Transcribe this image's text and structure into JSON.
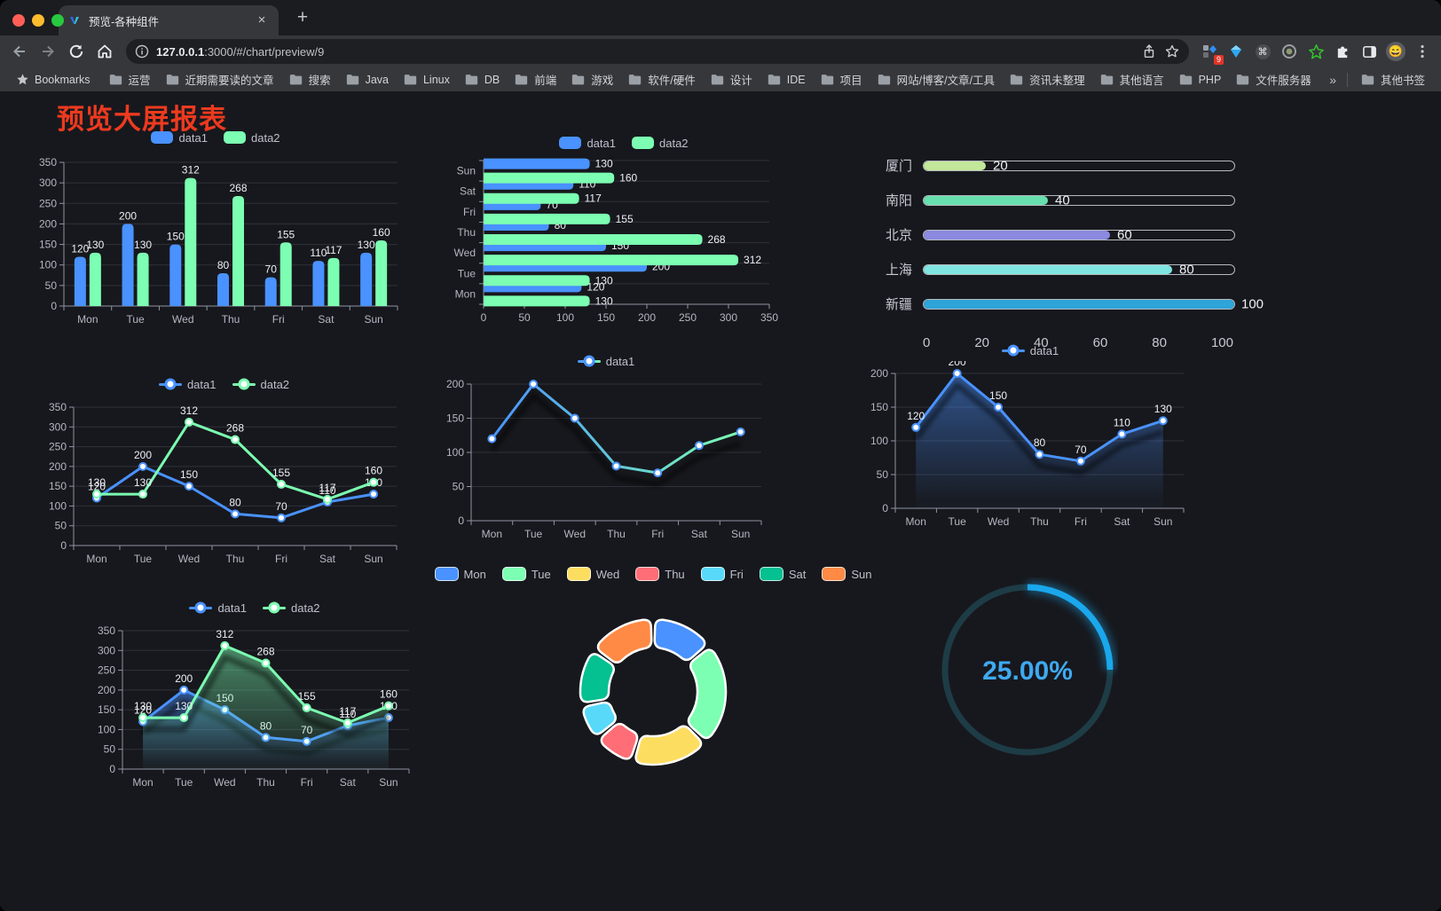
{
  "browser": {
    "tab_title": "预览-各种组件",
    "new_tab_label": "+",
    "close_label": "×",
    "url_host": "127.0.0.1",
    "url_rest": ":3000/#/chart/preview/9",
    "extension_badge": "9",
    "bookmarks_label": "Bookmarks",
    "bookmarks": [
      "运营",
      "近期需要读的文章",
      "搜索",
      "Java",
      "Linux",
      "DB",
      "前端",
      "游戏",
      "软件/硬件",
      "设计",
      "IDE",
      "项目",
      "网站/博客/文章/工具",
      "资讯未整理",
      "其他语言",
      "PHP",
      "文件服务器"
    ],
    "overflow_label": "»",
    "other_bookmarks": "其他书签"
  },
  "page": {
    "title": "预览大屏报表",
    "title_color": "#ed3a1f",
    "background": "#17181d"
  },
  "chart_data": [
    {
      "type": "bar",
      "categories": [
        "Mon",
        "Tue",
        "Wed",
        "Thu",
        "Fri",
        "Sat",
        "Sun"
      ],
      "series": [
        {
          "name": "data1",
          "color": "#4992ff",
          "values": [
            120,
            200,
            150,
            80,
            70,
            110,
            130
          ]
        },
        {
          "name": "data2",
          "color": "#7cffb2",
          "values": [
            130,
            130,
            312,
            268,
            155,
            117,
            160
          ]
        }
      ],
      "ylim": [
        0,
        350
      ],
      "ystep": 50,
      "legend_position": "top",
      "grid": true
    },
    {
      "type": "bar-horizontal",
      "categories": [
        "Mon",
        "Tue",
        "Wed",
        "Thu",
        "Fri",
        "Sat",
        "Sun"
      ],
      "display_order_top_to_bottom": [
        "Sun",
        "Sat",
        "Fri",
        "Thu",
        "Wed",
        "Tue",
        "Mon"
      ],
      "series": [
        {
          "name": "data1",
          "color": "#4992ff",
          "values": [
            120,
            200,
            150,
            80,
            70,
            110,
            130
          ]
        },
        {
          "name": "data2",
          "color": "#7cffb2",
          "values": [
            130,
            130,
            312,
            268,
            155,
            117,
            160
          ]
        }
      ],
      "xlim": [
        0,
        350
      ],
      "xstep": 50,
      "legend_position": "top",
      "grid": true
    },
    {
      "type": "progress",
      "rows": [
        {
          "label": "厦门",
          "value": 20,
          "color": "#c3e79a"
        },
        {
          "label": "南阳",
          "value": 40,
          "color": "#68dfae"
        },
        {
          "label": "北京",
          "value": 60,
          "color": "#8b89e0"
        },
        {
          "label": "上海",
          "value": 80,
          "color": "#80e5e1"
        },
        {
          "label": "新疆",
          "value": 100,
          "color": "#2ea4d9"
        }
      ],
      "xticks": [
        0,
        20,
        40,
        60,
        80,
        100
      ],
      "xlim": [
        0,
        100
      ]
    },
    {
      "type": "line",
      "categories": [
        "Mon",
        "Tue",
        "Wed",
        "Thu",
        "Fri",
        "Sat",
        "Sun"
      ],
      "series": [
        {
          "name": "data1",
          "color": "#4992ff",
          "values": [
            120,
            200,
            150,
            80,
            70,
            110,
            130
          ]
        },
        {
          "name": "data2",
          "color": "#7cffb2",
          "values": [
            130,
            130,
            312,
            268,
            155,
            117,
            160
          ]
        }
      ],
      "ylim": [
        0,
        350
      ],
      "ystep": 50,
      "labels": true,
      "area": false,
      "shadow": false,
      "legend_position": "top",
      "grid": true
    },
    {
      "type": "line",
      "categories": [
        "Mon",
        "Tue",
        "Wed",
        "Thu",
        "Fri",
        "Sat",
        "Sun"
      ],
      "series": [
        {
          "name": "data1",
          "color": "#4992ff",
          "color2": "#7cffb2",
          "values": [
            120,
            200,
            150,
            80,
            70,
            110,
            130
          ]
        }
      ],
      "ylim": [
        0,
        200
      ],
      "ystep": 50,
      "labels": false,
      "area": false,
      "shadow": true,
      "legend_position": "top",
      "grid": true
    },
    {
      "type": "line",
      "categories": [
        "Mon",
        "Tue",
        "Wed",
        "Thu",
        "Fri",
        "Sat",
        "Sun"
      ],
      "series": [
        {
          "name": "data1",
          "color": "#4992ff",
          "values": [
            120,
            200,
            150,
            80,
            70,
            110,
            130
          ]
        }
      ],
      "ylim": [
        0,
        200
      ],
      "ystep": 50,
      "labels": true,
      "area": true,
      "shadow": true,
      "legend_position": "top",
      "grid": true
    },
    {
      "type": "line",
      "categories": [
        "Mon",
        "Tue",
        "Wed",
        "Thu",
        "Fri",
        "Sat",
        "Sun"
      ],
      "series": [
        {
          "name": "data1",
          "color": "#4992ff",
          "values": [
            120,
            200,
            150,
            80,
            70,
            110,
            130
          ]
        },
        {
          "name": "data2",
          "color": "#7cffb2",
          "values": [
            130,
            130,
            312,
            268,
            155,
            117,
            160
          ]
        }
      ],
      "ylim": [
        0,
        350
      ],
      "ystep": 50,
      "labels": true,
      "area": true,
      "shadow": true,
      "legend_position": "top",
      "grid": true
    },
    {
      "type": "pie",
      "subtype": "donut",
      "categories": [
        "Mon",
        "Tue",
        "Wed",
        "Thu",
        "Fri",
        "Sat",
        "Sun"
      ],
      "values": [
        120,
        200,
        150,
        80,
        70,
        110,
        130
      ],
      "colors": [
        "#4992ff",
        "#7cffb2",
        "#fddd60",
        "#ff6e76",
        "#58d9f9",
        "#05c091",
        "#ff8a45"
      ],
      "legend_position": "top"
    },
    {
      "type": "gauge",
      "value": 25,
      "display": "25.00%",
      "color": "#1aa7ec",
      "track_color": "#1d3c46",
      "text_color": "#3fa9f0"
    }
  ]
}
